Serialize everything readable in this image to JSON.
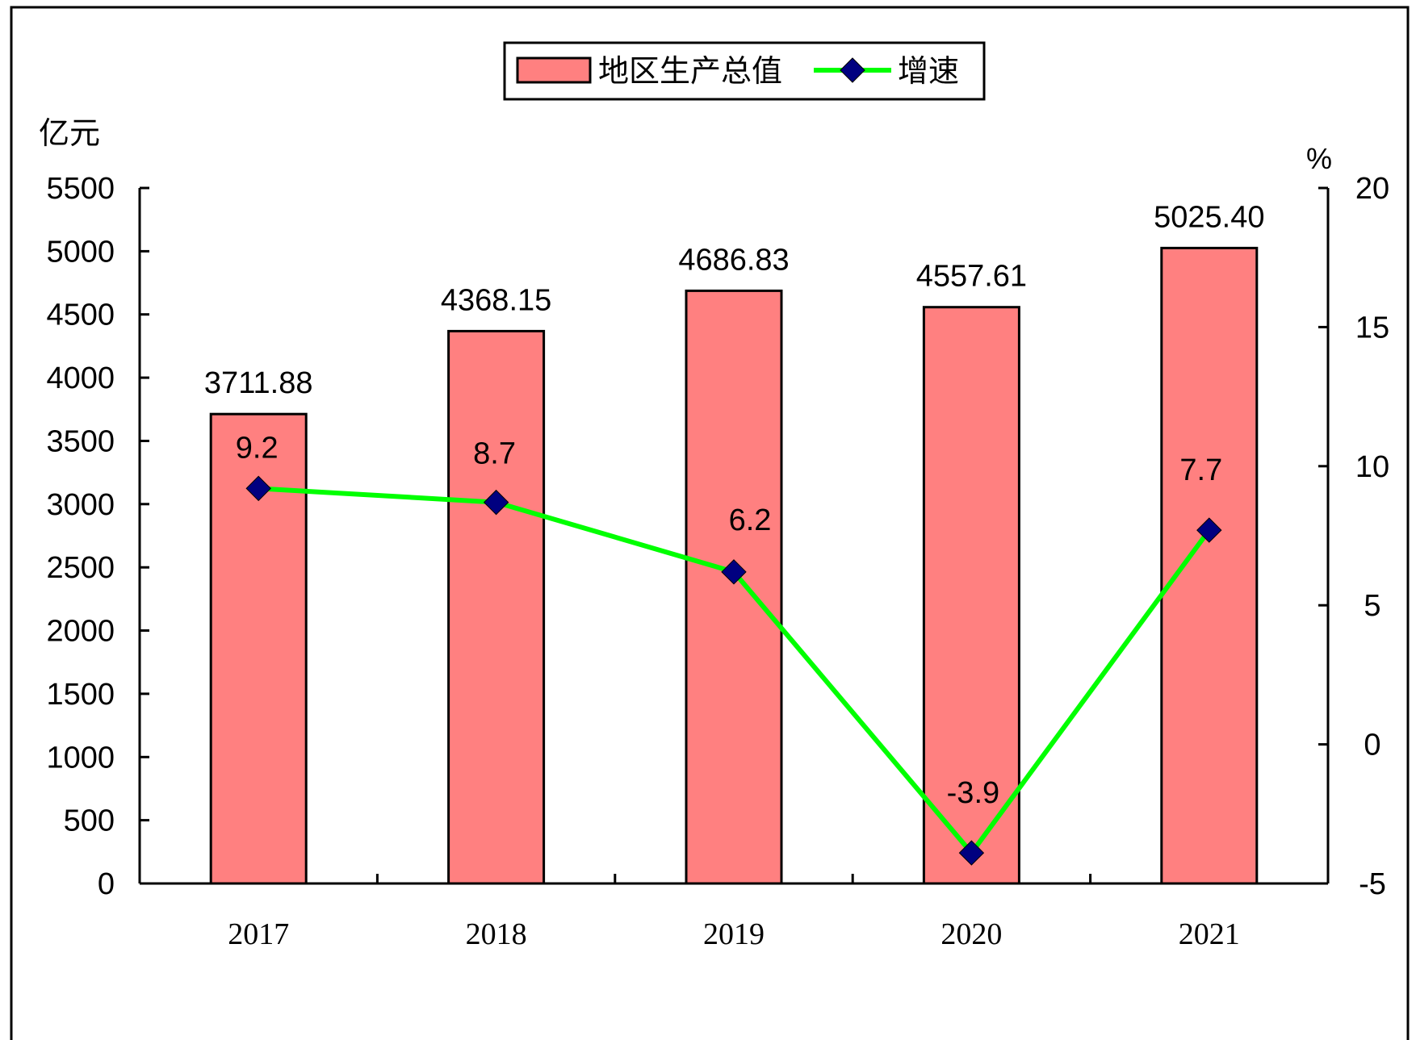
{
  "chart_data": {
    "type": "bar",
    "categories": [
      "2017",
      "2018",
      "2019",
      "2020",
      "2021"
    ],
    "series": [
      {
        "name": "地区生产总值",
        "type": "bar",
        "axis": "left",
        "values": [
          3711.88,
          4368.15,
          4686.83,
          4557.61,
          5025.4
        ],
        "labels": [
          "3711.88",
          "4368.15",
          "4686.83",
          "4557.61",
          "5025.40"
        ],
        "color": "#FF8080"
      },
      {
        "name": "增速",
        "type": "line",
        "axis": "right",
        "values": [
          9.2,
          8.7,
          6.2,
          -3.9,
          7.7
        ],
        "labels": [
          "9.2",
          "8.7",
          "6.2",
          "-3.9",
          "7.7"
        ],
        "color": "#00FF00",
        "marker_color": "#000080"
      }
    ],
    "y_left": {
      "unit": "亿元",
      "range": [
        0,
        5500
      ],
      "ticks": [
        0,
        500,
        1000,
        1500,
        2000,
        2500,
        3000,
        3500,
        4000,
        4500,
        5000,
        5500
      ],
      "tick_labels": [
        "0",
        "500",
        "1000",
        "1500",
        "2000",
        "2500",
        "3000",
        "3500",
        "4000",
        "4500",
        "5000",
        "5500"
      ]
    },
    "y_right": {
      "unit": "%",
      "range": [
        -5,
        20
      ],
      "ticks": [
        -5,
        0,
        5,
        10,
        15,
        20
      ],
      "tick_labels": [
        "-5",
        "0",
        "5",
        "10",
        "15",
        "20"
      ]
    },
    "legend": {
      "placement": "top-center"
    },
    "grid": false
  }
}
